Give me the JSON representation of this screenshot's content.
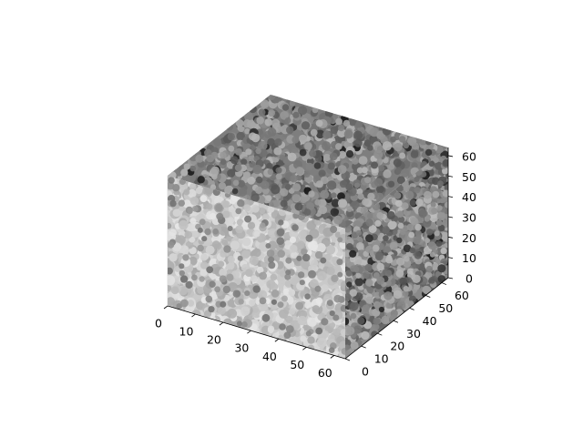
{
  "chart_data": {
    "type": "scatter",
    "projection": "3d",
    "title": "",
    "xlabel": "",
    "ylabel": "",
    "zlabel": "",
    "xlim": [
      0,
      64
    ],
    "ylim": [
      0,
      64
    ],
    "zlim": [
      0,
      64
    ],
    "xticks": [
      0,
      10,
      20,
      30,
      40,
      50,
      60
    ],
    "yticks": [
      0,
      10,
      20,
      30,
      40,
      50,
      60
    ],
    "zticks": [
      0,
      10,
      20,
      30,
      40,
      50,
      60
    ],
    "grid": true,
    "legend": "none",
    "colormap": "gray",
    "point_extent": {
      "x": [
        0,
        64
      ],
      "y": [
        0,
        64
      ],
      "z": [
        0,
        64
      ]
    },
    "colors": {
      "pane_left": "#f2f2f2",
      "pane_back": "#ebebeb",
      "pane_floor": "#e6e6e6",
      "grid": "#d8d8d8",
      "axis": "#000000"
    }
  }
}
